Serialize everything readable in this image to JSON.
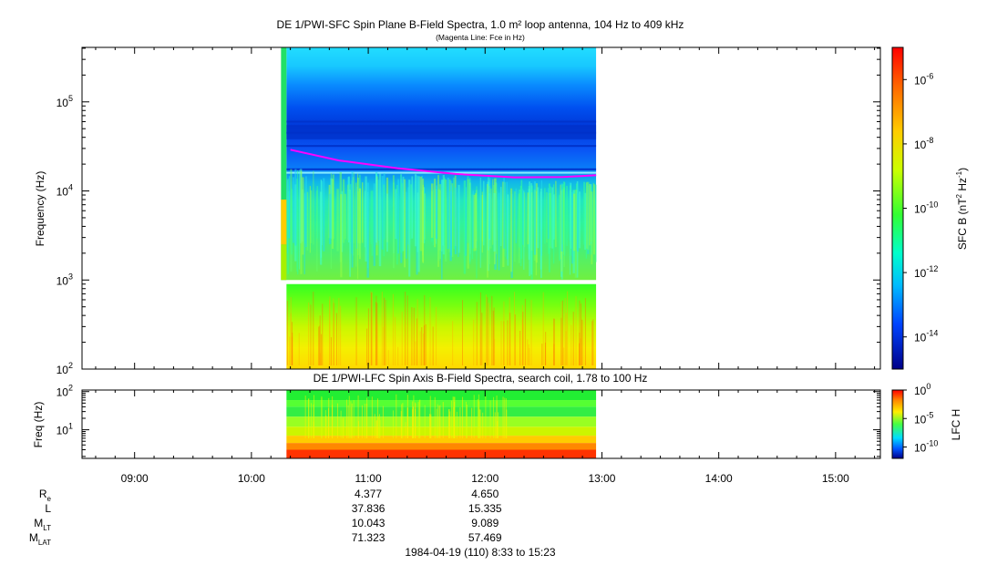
{
  "chart_data": [
    {
      "type": "heatmap",
      "panel": "top",
      "title": "DE 1/PWI-SFC  Spin Plane B-Field Spectra, 1.0 m² loop antenna, 104 Hz to 409 kHz",
      "subtitle": "(Magenta Line: Fce in Hz)",
      "ylabel": "Frequency (Hz)",
      "yscale": "log",
      "ylim": [
        100,
        409000
      ],
      "y_ticks": [
        {
          "value": 100,
          "base": "10",
          "exp": "2"
        },
        {
          "value": 1000,
          "base": "10",
          "exp": "3"
        },
        {
          "value": 10000,
          "base": "10",
          "exp": "4"
        },
        {
          "value": 100000,
          "base": "10",
          "exp": "5"
        }
      ],
      "colorbar": {
        "label_main": "SFC B (nT",
        "label_sup1": "2",
        "label_mid": " Hz",
        "label_sup2": "-1",
        "label_end": ")",
        "scale": "log",
        "range": [
          1e-15,
          1e-05
        ],
        "ticks": [
          {
            "value": 1e-06,
            "base": "10",
            "exp": "-6"
          },
          {
            "value": 1e-08,
            "base": "10",
            "exp": "-8"
          },
          {
            "value": 1e-10,
            "base": "10",
            "exp": "-10"
          },
          {
            "value": 1e-12,
            "base": "10",
            "exp": "-12"
          },
          {
            "value": 1e-14,
            "base": "10",
            "exp": "-14"
          }
        ]
      },
      "data_coverage": {
        "start": "10:18",
        "end": "12:57"
      },
      "fce_line": {
        "name": "Fce",
        "color": "#ff00ff",
        "points": [
          [
            "10:20",
            29000
          ],
          [
            "10:45",
            22000
          ],
          [
            "11:15",
            18000
          ],
          [
            "11:45",
            15500
          ],
          [
            "12:15",
            14200
          ],
          [
            "12:40",
            14300
          ],
          [
            "12:57",
            15000
          ]
        ]
      }
    },
    {
      "type": "heatmap",
      "panel": "bottom",
      "title": "DE 1/PWI-LFC  Spin Axis B-Field Spectra, search coil, 1.78 to 100 Hz",
      "ylabel": "Freq (Hz)",
      "yscale": "log",
      "ylim": [
        1.78,
        110
      ],
      "y_ticks": [
        {
          "value": 10,
          "base": "10",
          "exp": "1"
        },
        {
          "value": 100,
          "base": "10",
          "exp": "2"
        }
      ],
      "colorbar": {
        "label": "LFC H",
        "scale": "log",
        "range": [
          1e-12,
          1
        ],
        "ticks": [
          {
            "value": 1,
            "base": "10",
            "exp": "0"
          },
          {
            "value": 1e-05,
            "base": "10",
            "exp": "-5"
          },
          {
            "value": 1e-10,
            "base": "10",
            "exp": "-10"
          }
        ]
      },
      "data_coverage": {
        "start": "10:18",
        "end": "12:57"
      }
    }
  ],
  "x_axis": {
    "range": [
      "08:33",
      "15:23"
    ],
    "ticks": [
      "09:00",
      "10:00",
      "11:00",
      "12:00",
      "13:00",
      "14:00",
      "15:00"
    ]
  },
  "ephemeris": {
    "rows": [
      {
        "label": "R",
        "sub": "e",
        "values": [
          "4.377",
          "4.650"
        ]
      },
      {
        "label": "L",
        "sub": "",
        "values": [
          "37.836",
          "15.335"
        ]
      },
      {
        "label": "M",
        "sub": "LT",
        "values": [
          "10.043",
          "9.089"
        ]
      },
      {
        "label": "M",
        "sub": "LAT",
        "values": [
          "71.323",
          "57.469"
        ]
      }
    ],
    "times": [
      "11:00",
      "12:00"
    ]
  },
  "footer": "1984-04-19 (110) 8:33 to 15:23"
}
